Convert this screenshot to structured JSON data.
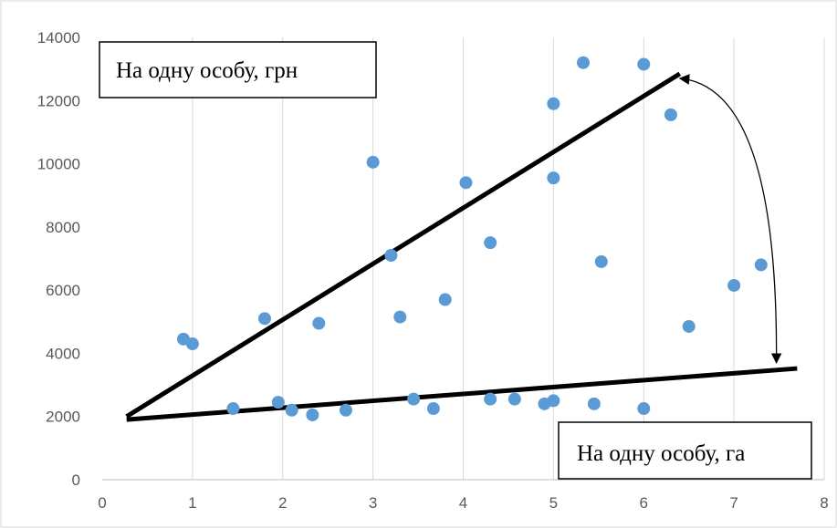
{
  "chart_data": {
    "type": "scatter",
    "title": "",
    "xlabel": "",
    "ylabel": "",
    "xlim": [
      0,
      8
    ],
    "ylim": [
      0,
      14000
    ],
    "x_ticks": [
      "0",
      "1",
      "2",
      "3",
      "4",
      "5",
      "6",
      "7",
      "8"
    ],
    "y_ticks": [
      "0",
      "2000",
      "4000",
      "6000",
      "8000",
      "10000",
      "12000",
      "14000"
    ],
    "grid": "vertical",
    "series": [
      {
        "color": "#5b9bd5",
        "points": [
          {
            "x": 0.9,
            "y": 4450
          },
          {
            "x": 1.0,
            "y": 4300
          },
          {
            "x": 1.45,
            "y": 2250
          },
          {
            "x": 1.8,
            "y": 5100
          },
          {
            "x": 1.95,
            "y": 2450
          },
          {
            "x": 2.1,
            "y": 2200
          },
          {
            "x": 2.33,
            "y": 2050
          },
          {
            "x": 2.4,
            "y": 4950
          },
          {
            "x": 2.7,
            "y": 2200
          },
          {
            "x": 3.0,
            "y": 10050
          },
          {
            "x": 3.2,
            "y": 7100
          },
          {
            "x": 3.3,
            "y": 5150
          },
          {
            "x": 3.45,
            "y": 2550
          },
          {
            "x": 3.67,
            "y": 2250
          },
          {
            "x": 3.8,
            "y": 5700
          },
          {
            "x": 4.03,
            "y": 9400
          },
          {
            "x": 4.3,
            "y": 7500
          },
          {
            "x": 4.3,
            "y": 2550
          },
          {
            "x": 4.57,
            "y": 2550
          },
          {
            "x": 4.9,
            "y": 2400
          },
          {
            "x": 5.0,
            "y": 2500
          },
          {
            "x": 5.0,
            "y": 9550
          },
          {
            "x": 5.0,
            "y": 11900
          },
          {
            "x": 5.33,
            "y": 13200
          },
          {
            "x": 5.45,
            "y": 2400
          },
          {
            "x": 5.53,
            "y": 6900
          },
          {
            "x": 6.0,
            "y": 13150
          },
          {
            "x": 6.0,
            "y": 2250
          },
          {
            "x": 6.3,
            "y": 11550
          },
          {
            "x": 6.5,
            "y": 4850
          },
          {
            "x": 7.0,
            "y": 6150
          },
          {
            "x": 7.3,
            "y": 6800
          }
        ]
      }
    ],
    "trend_lines": [
      {
        "label": "На одну особу, грн",
        "from": {
          "x": 0.27,
          "y": 2000
        },
        "to": {
          "x": 6.4,
          "y": 12850
        }
      },
      {
        "label": "На одну особу, га",
        "from": {
          "x": 0.27,
          "y": 1900
        },
        "to": {
          "x": 7.7,
          "y": 3520
        }
      }
    ],
    "annotations": [
      {
        "text": "На одну особу, грн",
        "position": "top-left"
      },
      {
        "text": "На одну особу, га",
        "position": "bottom-right"
      }
    ],
    "arrow": {
      "style": "double-headed curved",
      "from": {
        "x": 6.4,
        "y": 12700
      },
      "to": {
        "x": 7.47,
        "y": 3700
      }
    }
  }
}
